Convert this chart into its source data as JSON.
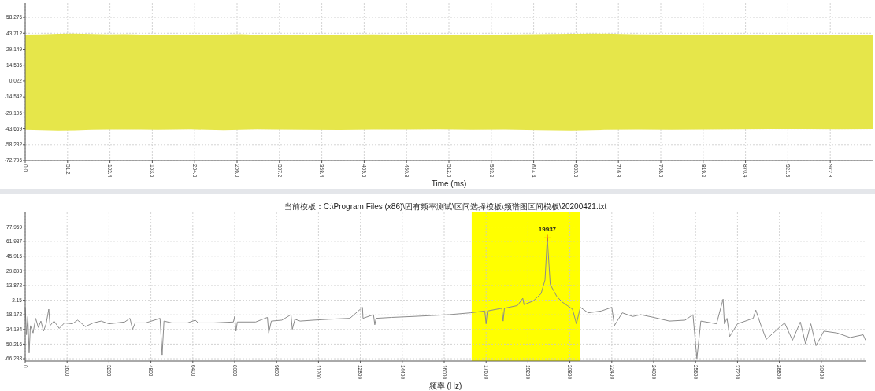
{
  "chart_data": [
    {
      "type": "area",
      "xlabel": "Time (ms)",
      "grid": true,
      "xlim": [
        0,
        1024
      ],
      "ylim": [
        -72.796,
        71.3
      ],
      "xticks": [
        {
          "value": 0,
          "label": "0.0"
        },
        51.2,
        102.4,
        153.6,
        204.8,
        {
          "value": 256,
          "label": "256.0"
        },
        307.2,
        358.4,
        409.6,
        460.8,
        {
          "value": 512,
          "label": "512.0"
        },
        563.2,
        614.4,
        665.6,
        716.8,
        {
          "value": 768,
          "label": "768.0"
        },
        819.2,
        870.4,
        921.6,
        972.8
      ],
      "yticks": [
        58.276,
        43.712,
        29.149,
        14.585,
        0.022,
        -14.542,
        -29.105,
        -43.669,
        -58.232,
        -72.796
      ],
      "x": [
        0,
        20,
        40,
        60,
        80,
        100,
        120,
        140,
        160,
        180,
        200,
        220,
        240,
        260,
        280,
        300,
        340,
        380,
        420,
        460,
        500,
        540,
        580,
        620,
        660,
        700,
        740,
        780,
        820,
        860,
        900,
        940,
        980,
        1024
      ],
      "series": [
        {
          "color": "#e6e64a",
          "values": [
            42.5,
            42.6,
            43.2,
            43.4,
            43.0,
            42.6,
            42.8,
            42.5,
            42.3,
            42.5,
            42.4,
            42.2,
            42.4,
            42.8,
            42.3,
            42.2,
            42.4,
            42.3,
            42.7,
            42.3,
            42.3,
            42.4,
            42.5,
            42.9,
            43.2,
            43.3,
            42.7,
            42.4,
            42.3,
            42.2,
            42.0,
            42.1,
            42.4,
            42.0
          ]
        },
        {
          "color": "#e6e64a",
          "values": [
            -44.6,
            -44.8,
            -45.2,
            -45.0,
            -44.6,
            -44.3,
            -44.4,
            -44.4,
            -44.5,
            -44.3,
            -44.2,
            -44.6,
            -44.9,
            -44.5,
            -44.2,
            -44.3,
            -44.5,
            -44.7,
            -44.4,
            -44.3,
            -44.2,
            -44.5,
            -44.4,
            -44.8,
            -45.3,
            -44.6,
            -44.4,
            -44.5,
            -44.3,
            -44.2,
            -44.0,
            -44.0,
            -44.2,
            -43.9
          ]
        }
      ]
    },
    {
      "type": "line",
      "title": "当前模板：C:\\Program Files (x86)\\固有频率测试\\区间选择模板\\频谱图区间模板\\20200421.txt",
      "xlabel": "频率 (Hz)",
      "grid": true,
      "xlim": [
        0,
        32090
      ],
      "ylim": [
        -68.8,
        93.9
      ],
      "xticks": [
        0,
        1600,
        3200,
        4800,
        6400,
        8000,
        9600,
        11200,
        12800,
        14400,
        16000,
        17600,
        19200,
        20800,
        22400,
        24000,
        25600,
        27200,
        28800,
        30400
      ],
      "yticks": [
        77.959,
        61.937,
        45.915,
        29.893,
        13.872,
        -2.15,
        -18.172,
        -34.194,
        -50.216,
        -66.238
      ],
      "bands": [
        {
          "axis": "x",
          "from": 17050,
          "to": 21200,
          "color": "#ffff00"
        }
      ],
      "annotations": [
        {
          "text": "19937",
          "x": 19937,
          "y": 66
        }
      ],
      "x": [
        0,
        50,
        100,
        150,
        200,
        300,
        400,
        500,
        600,
        700,
        800,
        900,
        950,
        1100,
        1300,
        1500,
        1800,
        2000,
        2300,
        2600,
        2900,
        3200,
        3500,
        3800,
        4000,
        4100,
        4200,
        4600,
        5150,
        5230,
        5300,
        5600,
        6200,
        6500,
        6600,
        7200,
        7950,
        8000,
        8050,
        8100,
        8800,
        9250,
        9300,
        9400,
        9800,
        10150,
        10200,
        10300,
        10500,
        11000,
        11600,
        12400,
        12880,
        12900,
        13300,
        13350,
        13400,
        14000,
        14800,
        15500,
        16200,
        17000,
        17550,
        17600,
        17650,
        18200,
        18250,
        18300,
        18800,
        19000,
        19050,
        19400,
        19700,
        19850,
        19937,
        20050,
        20300,
        20500,
        20700,
        20900,
        21050,
        21200,
        21500,
        22000,
        22400,
        22500,
        22800,
        23200,
        23500,
        24000,
        24600,
        25200,
        25500,
        25650,
        25800,
        26400,
        26650,
        26700,
        26800,
        26900,
        27200,
        27800,
        27900,
        28100,
        28300,
        28800,
        29000,
        29300,
        29600,
        29800,
        30000,
        30200,
        30500,
        31000,
        31500,
        32000,
        32090
      ],
      "series": [
        {
          "color": "#8c8c8c",
          "values": [
            -10,
            -40,
            -20,
            -60,
            -30,
            -38,
            -22,
            -32,
            -25,
            -36,
            -28,
            -12,
            -30,
            -25,
            -33,
            -27,
            -28,
            -24,
            -31,
            -27,
            -25,
            -28,
            -27,
            -26,
            -22,
            -34,
            -27,
            -27,
            -22,
            -62,
            -25,
            -27,
            -27,
            -24,
            -27,
            -27,
            -26,
            -20,
            -36,
            -26,
            -26,
            -21,
            -38,
            -25,
            -24,
            -18,
            -34,
            -23,
            -25,
            -24,
            -23,
            -22,
            -10,
            -22,
            -18,
            -29,
            -22,
            -21,
            -20,
            -19,
            -18,
            -16,
            -14,
            -28,
            -14,
            -11,
            -25,
            -11,
            -8,
            0,
            -7,
            -3,
            5,
            20,
            66,
            15,
            2,
            -4,
            -8,
            -12,
            -28,
            -10,
            -16,
            -14,
            -10,
            -30,
            -16,
            -20,
            -18,
            -21,
            -25,
            -24,
            -18,
            -66,
            -25,
            -28,
            -1,
            -28,
            -22,
            -42,
            -28,
            -22,
            -13,
            -30,
            -45,
            -32,
            -27,
            -46,
            -26,
            -50,
            -28,
            -52,
            -36,
            -38,
            -43,
            -40,
            -46
          ]
        }
      ]
    }
  ]
}
